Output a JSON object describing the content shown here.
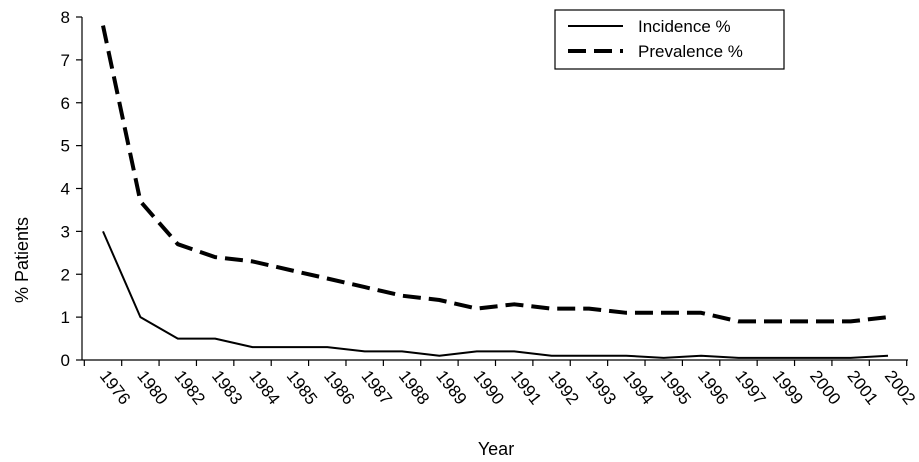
{
  "chart_data": {
    "type": "line",
    "title": "",
    "xlabel": "Year",
    "ylabel": "% Patients",
    "ylim": [
      0,
      8
    ],
    "yticks": [
      "0",
      "1",
      "2",
      "3",
      "4",
      "5",
      "6",
      "7",
      "8"
    ],
    "categories": [
      "1976",
      "1980",
      "1982",
      "1983",
      "1984",
      "1985",
      "1986",
      "1987",
      "1988",
      "1989",
      "1990",
      "1991",
      "1992",
      "1993",
      "1994",
      "1995",
      "1996",
      "1997",
      "1999",
      "2000",
      "2001",
      "2002"
    ],
    "series": [
      {
        "name": "Incidence %",
        "line_style": "solid",
        "color": "#000000",
        "values": [
          3.0,
          1.0,
          0.5,
          0.5,
          0.3,
          0.3,
          0.3,
          0.2,
          0.2,
          0.1,
          0.2,
          0.2,
          0.1,
          0.1,
          0.1,
          0.05,
          0.1,
          0.05,
          0.05,
          0.05,
          0.05,
          0.1
        ]
      },
      {
        "name": "Prevalence %",
        "line_style": "dashed",
        "color": "#000000",
        "values": [
          7.8,
          3.7,
          2.7,
          2.4,
          2.3,
          2.1,
          1.9,
          1.7,
          1.5,
          1.4,
          1.2,
          1.3,
          1.2,
          1.2,
          1.1,
          1.1,
          1.1,
          0.9,
          0.9,
          0.9,
          0.9,
          1.0
        ]
      }
    ],
    "legend_position": "top-right",
    "grid": false
  }
}
